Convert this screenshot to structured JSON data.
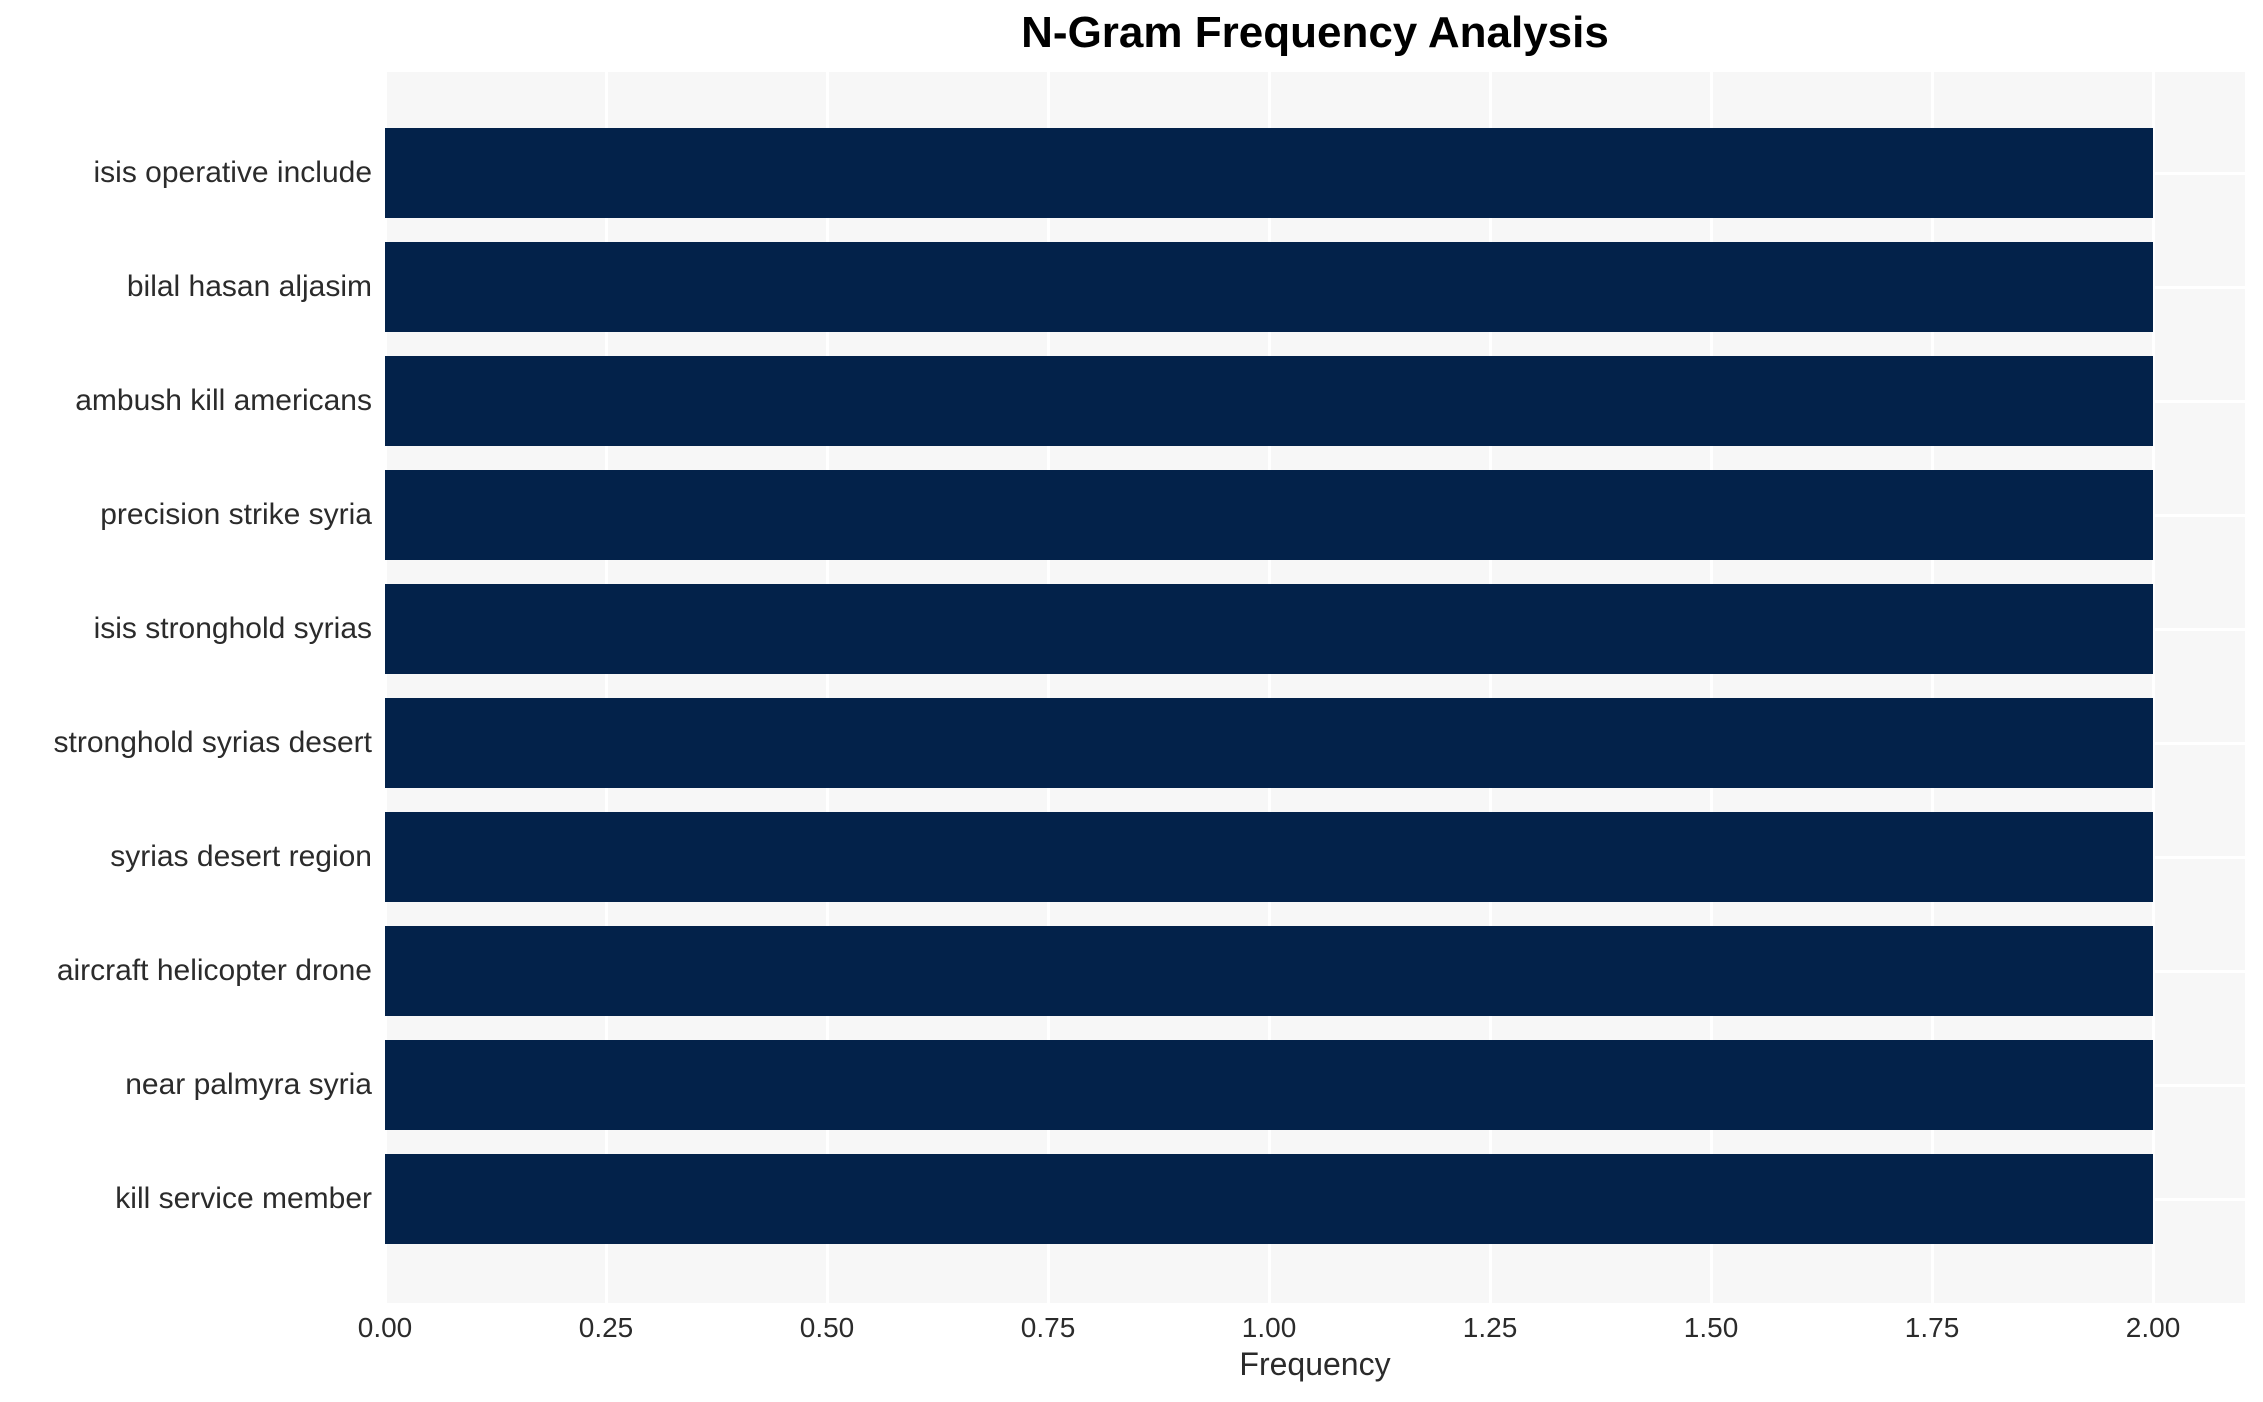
{
  "chart_data": {
    "type": "bar",
    "orientation": "horizontal",
    "title": "N-Gram Frequency Analysis",
    "xlabel": "Frequency",
    "ylabel": "",
    "categories": [
      "isis operative include",
      "bilal hasan aljasim",
      "ambush kill americans",
      "precision strike syria",
      "isis stronghold syrias",
      "stronghold syrias desert",
      "syrias desert region",
      "aircraft helicopter drone",
      "near palmyra syria",
      "kill service member"
    ],
    "values": [
      2,
      2,
      2,
      2,
      2,
      2,
      2,
      2,
      2,
      2
    ],
    "xlim": [
      0,
      2.104
    ],
    "xticks": {
      "values": [
        0,
        0.25,
        0.5,
        0.75,
        1,
        1.25,
        1.5,
        1.75,
        2
      ],
      "labels": [
        "0.00",
        "0.25",
        "0.50",
        "0.75",
        "1.00",
        "1.25",
        "1.50",
        "1.75",
        "2.00"
      ]
    },
    "grid": true,
    "legend_position": "none",
    "colors": {
      "bar": "#03224a",
      "plot_background": "#f7f7f7",
      "gridline": "#ffffff",
      "tick_text": "#2b2b2b",
      "title_text": "#000000"
    }
  }
}
